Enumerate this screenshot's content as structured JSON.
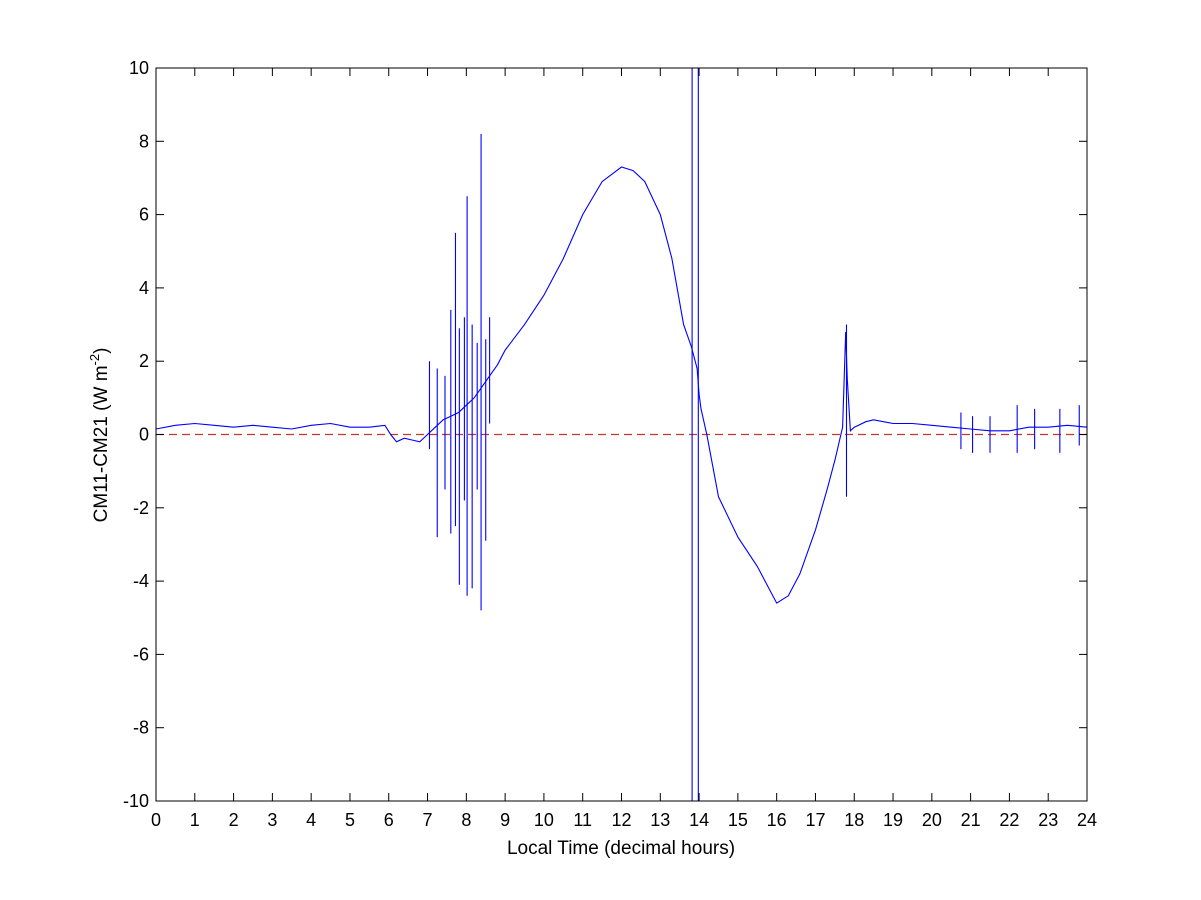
{
  "chart_data": {
    "type": "line",
    "title": "",
    "xlabel": "Local Time (decimal hours)",
    "ylabel_main": "CM11-CM21 (W m",
    "ylabel_sup": "-2",
    "ylabel_tail": ")",
    "xlim": [
      0,
      24
    ],
    "ylim": [
      -10,
      10
    ],
    "xticks": [
      0,
      1,
      2,
      3,
      4,
      5,
      6,
      7,
      8,
      9,
      10,
      11,
      12,
      13,
      14,
      15,
      16,
      17,
      18,
      19,
      20,
      21,
      22,
      23,
      24
    ],
    "yticks": [
      -10,
      -8,
      -6,
      -4,
      -2,
      0,
      2,
      4,
      6,
      8,
      10
    ],
    "grid": false,
    "legend": "none",
    "colors": {
      "series": "#0000ff",
      "reference": "#c0392b",
      "axes": "#000000",
      "background": "#ffffff"
    },
    "series": [
      {
        "style": "solid",
        "x": [
          0,
          0.5,
          1,
          1.5,
          2,
          2.5,
          3,
          3.5,
          4,
          4.5,
          5,
          5.5,
          5.9,
          6.05,
          6.2,
          6.4,
          6.6,
          6.8,
          7,
          7.2,
          7.4,
          7.6,
          7.8,
          8,
          8.2,
          8.4,
          8.6,
          8.8,
          9,
          9.5,
          10,
          10.5,
          11,
          11.5,
          12,
          12.3,
          12.6,
          13,
          13.3,
          13.6,
          13.8,
          13.95,
          14,
          14.05,
          14.2,
          14.5,
          15,
          15.5,
          16,
          16.3,
          16.6,
          17,
          17.3,
          17.5,
          17.7,
          17.78,
          17.82,
          17.9,
          18,
          18.3,
          18.5,
          19,
          19.5,
          20,
          20.5,
          21,
          21.5,
          22,
          22.5,
          23,
          23.5,
          24
        ],
        "y": [
          0.15,
          0.25,
          0.3,
          0.25,
          0.2,
          0.25,
          0.2,
          0.15,
          0.25,
          0.3,
          0.2,
          0.2,
          0.25,
          0.0,
          -0.2,
          -0.1,
          -0.15,
          -0.2,
          0.0,
          0.2,
          0.4,
          0.5,
          0.6,
          0.8,
          1.0,
          1.3,
          1.6,
          1.9,
          2.3,
          3.0,
          3.8,
          4.8,
          6.0,
          6.9,
          7.3,
          7.2,
          6.9,
          6.0,
          4.8,
          3.0,
          2.4,
          1.8,
          1.1,
          0.7,
          0.0,
          -1.7,
          -2.8,
          -3.6,
          -4.6,
          -4.4,
          -3.8,
          -2.6,
          -1.5,
          -0.7,
          0.2,
          2.8,
          1.5,
          0.1,
          0.2,
          0.35,
          0.4,
          0.3,
          0.3,
          0.25,
          0.2,
          0.15,
          0.1,
          0.1,
          0.2,
          0.2,
          0.25,
          0.2
        ]
      },
      {
        "name": "reference",
        "style": "dashed",
        "x": [
          0,
          24
        ],
        "y": [
          0,
          0
        ]
      }
    ],
    "spikes": [
      {
        "x": 7.05,
        "low": -0.4,
        "high": 2.0
      },
      {
        "x": 7.25,
        "low": -2.8,
        "high": 1.8
      },
      {
        "x": 7.45,
        "low": -1.5,
        "high": 1.6
      },
      {
        "x": 7.6,
        "low": -2.7,
        "high": 3.4
      },
      {
        "x": 7.72,
        "low": -2.5,
        "high": 5.5
      },
      {
        "x": 7.82,
        "low": -4.1,
        "high": 2.9
      },
      {
        "x": 7.95,
        "low": -1.8,
        "high": 3.2
      },
      {
        "x": 8.02,
        "low": -4.4,
        "high": 6.5
      },
      {
        "x": 8.15,
        "low": -4.2,
        "high": 3.0
      },
      {
        "x": 8.28,
        "low": -1.5,
        "high": 2.5
      },
      {
        "x": 8.38,
        "low": -4.8,
        "high": 8.2
      },
      {
        "x": 8.5,
        "low": -2.9,
        "high": 2.6
      },
      {
        "x": 8.6,
        "low": 0.3,
        "high": 3.2
      },
      {
        "x": 13.82,
        "low": -10,
        "high": 10
      },
      {
        "x": 13.98,
        "low": -10,
        "high": 10
      },
      {
        "x": 17.8,
        "low": -1.7,
        "high": 3.0
      },
      {
        "x": 20.75,
        "low": -0.4,
        "high": 0.6
      },
      {
        "x": 21.05,
        "low": -0.5,
        "high": 0.5
      },
      {
        "x": 21.5,
        "low": -0.5,
        "high": 0.5
      },
      {
        "x": 22.2,
        "low": -0.5,
        "high": 0.8
      },
      {
        "x": 22.65,
        "low": -0.4,
        "high": 0.7
      },
      {
        "x": 23.3,
        "low": -0.5,
        "high": 0.7
      },
      {
        "x": 23.8,
        "low": -0.3,
        "high": 0.8
      }
    ]
  }
}
